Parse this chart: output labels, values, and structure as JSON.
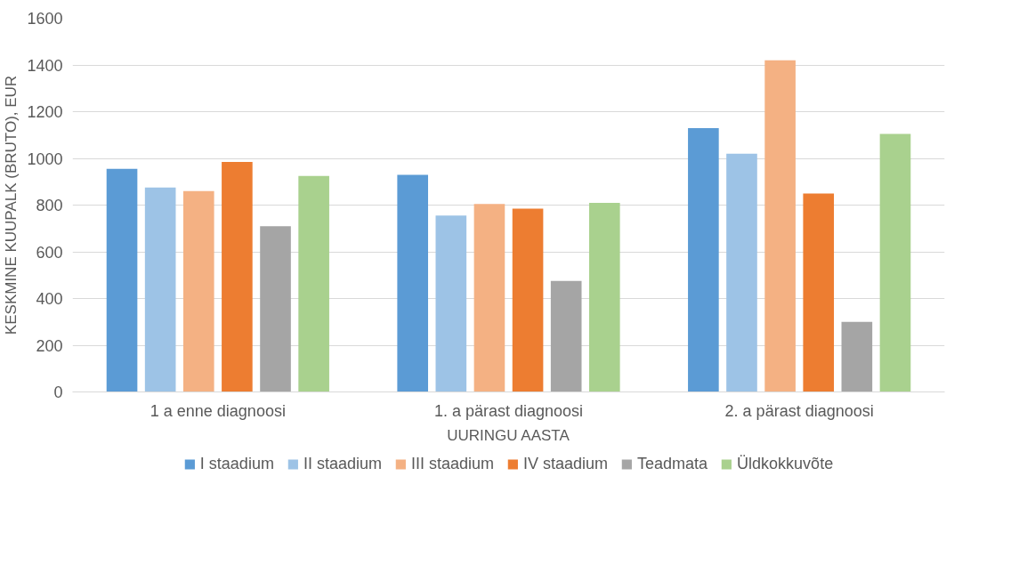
{
  "chart_data": {
    "type": "bar",
    "xlabel": "UURINGU AASTA",
    "ylabel": "KESKMINE KUUPALK (BRUTO), EUR",
    "categories": [
      "1 a enne diagnoosi",
      "1. a pärast diagnoosi",
      "2. a pärast diagnoosi"
    ],
    "series": [
      {
        "name": "I staadium",
        "color": "#5b9bd5",
        "values": [
          955,
          930,
          1130
        ]
      },
      {
        "name": "II staadium",
        "color": "#9dc3e6",
        "values": [
          875,
          755,
          1020
        ]
      },
      {
        "name": "III staadium",
        "color": "#f4b183",
        "values": [
          860,
          805,
          1420
        ]
      },
      {
        "name": "IV staadium",
        "color": "#ed7d31",
        "values": [
          985,
          785,
          850
        ]
      },
      {
        "name": "Teadmata",
        "color": "#a5a5a5",
        "values": [
          710,
          475,
          300
        ]
      },
      {
        "name": "Üldkokkuvõte",
        "color": "#a9d18e",
        "values": [
          925,
          810,
          1105
        ]
      }
    ],
    "ylim": [
      0,
      1600
    ],
    "yticks": [
      0,
      200,
      400,
      600,
      800,
      1000,
      1200,
      1400,
      1600
    ],
    "grid": "y",
    "legend": "bottom"
  }
}
